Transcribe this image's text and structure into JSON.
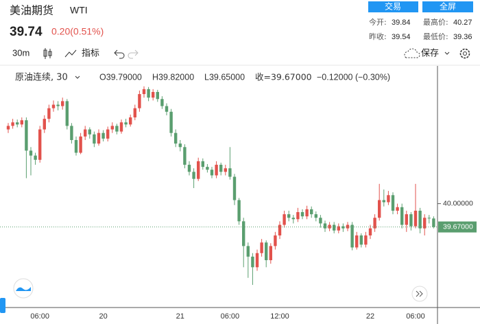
{
  "header": {
    "title": "美油期货",
    "symbol": "WTI",
    "price": "39.74",
    "change": "0.20(0.51%)",
    "buttons": [
      "交易",
      "全屏"
    ],
    "stats": [
      {
        "label": "今开:",
        "value": "39.84"
      },
      {
        "label": "最高价:",
        "value": "40.27"
      },
      {
        "label": "昨收:",
        "value": "39.54"
      },
      {
        "label": "最低价:",
        "value": "39.36"
      }
    ]
  },
  "toolbar": {
    "interval": "30m",
    "indicators": "指标",
    "save": "保存"
  },
  "legend": {
    "name": "原油连续, 30",
    "open": "O39.79000",
    "high": "H39.82000",
    "low": "L39.65000",
    "close": "收=39.67000",
    "change": "−0.12000 (−0.30%)"
  },
  "chart_data": {
    "type": "candlestick",
    "up_color": "#e2524c",
    "down_color": "#5a9e6f",
    "grid": false,
    "ylim": [
      38.53,
      41.91
    ],
    "yticks": [
      {
        "value": 40,
        "label": "40.00000"
      }
    ],
    "price_line": {
      "value": 39.67,
      "label": "39.67000"
    },
    "categories": [
      null,
      null,
      null,
      null,
      null,
      null,
      null,
      "06:00",
      null,
      null,
      null,
      null,
      null,
      null,
      null,
      null,
      null,
      null,
      null,
      null,
      null,
      "20",
      null,
      null,
      null,
      null,
      null,
      null,
      null,
      null,
      null,
      null,
      null,
      null,
      null,
      null,
      null,
      null,
      "21",
      null,
      null,
      null,
      null,
      null,
      null,
      null,
      null,
      null,
      null,
      "06:00",
      null,
      null,
      null,
      null,
      null,
      null,
      null,
      null,
      null,
      null,
      "12:00",
      null,
      null,
      null,
      null,
      null,
      null,
      null,
      null,
      null,
      null,
      null,
      null,
      null,
      null,
      null,
      null,
      null,
      null,
      null,
      "22",
      null,
      null,
      null,
      null,
      null,
      null,
      null,
      null,
      null,
      "06:00",
      null,
      null,
      null,
      null
    ],
    "open": [
      41.05,
      41.1,
      41.15,
      41.12,
      41.18,
      40.75,
      40.68,
      40.62,
      41.05,
      41.2,
      41.35,
      41.4,
      41.38,
      41.45,
      41.1,
      40.9,
      40.72,
      40.95,
      41.05,
      40.98,
      40.85,
      41.0,
      40.92,
      41.05,
      41.1,
      41.02,
      41.15,
      41.12,
      41.22,
      41.35,
      41.55,
      41.62,
      41.5,
      41.58,
      41.48,
      41.38,
      41.3,
      41.0,
      40.85,
      40.8,
      40.55,
      40.45,
      40.35,
      40.6,
      40.52,
      40.48,
      40.4,
      40.55,
      40.45,
      40.5,
      40.38,
      40.05,
      39.75,
      39.4,
      39.25,
      39.1,
      39.3,
      39.45,
      39.2,
      39.4,
      39.55,
      39.7,
      39.85,
      39.8,
      39.78,
      39.88,
      39.82,
      39.92,
      39.85,
      39.8,
      39.72,
      39.65,
      39.7,
      39.62,
      39.68,
      39.65,
      39.7,
      39.38,
      39.55,
      39.42,
      39.55,
      39.65,
      39.8,
      40.05,
      40.02,
      40.12,
      39.9,
      39.95,
      39.7,
      39.85,
      39.68,
      39.9,
      39.65,
      39.8,
      39.79
    ],
    "high": [
      41.14,
      41.2,
      41.19,
      41.22,
      41.22,
      40.8,
      40.72,
      41.1,
      41.25,
      41.4,
      41.46,
      41.45,
      41.5,
      41.48,
      41.14,
      40.95,
      41.0,
      41.1,
      41.08,
      41.02,
      41.05,
      41.04,
      41.09,
      41.15,
      41.13,
      41.19,
      41.2,
      41.26,
      41.4,
      41.6,
      41.66,
      41.65,
      41.62,
      41.61,
      41.52,
      41.42,
      41.34,
      41.05,
      40.9,
      40.84,
      40.6,
      40.5,
      40.65,
      40.64,
      40.56,
      40.52,
      40.6,
      40.58,
      40.55,
      40.8,
      40.42,
      40.08,
      39.8,
      39.45,
      39.3,
      39.35,
      39.5,
      39.48,
      39.44,
      39.6,
      39.75,
      39.9,
      39.9,
      39.84,
      39.94,
      39.92,
      39.97,
      39.96,
      39.89,
      39.84,
      39.76,
      39.74,
      39.74,
      39.72,
      39.72,
      39.74,
      39.74,
      39.6,
      39.58,
      39.6,
      39.7,
      39.85,
      40.28,
      40.2,
      40.18,
      40.16,
      40.0,
      40.0,
      39.9,
      39.88,
      40.28,
      39.94,
      39.85,
      39.84,
      39.82
    ],
    "low": [
      41.0,
      41.06,
      41.08,
      41.08,
      40.36,
      40.4,
      40.55,
      40.58,
      41.0,
      41.15,
      41.3,
      41.32,
      41.33,
      41.05,
      40.85,
      40.68,
      40.7,
      40.9,
      40.92,
      40.8,
      40.82,
      40.88,
      40.88,
      41.0,
      40.98,
      40.99,
      41.08,
      41.09,
      41.18,
      41.3,
      41.5,
      41.45,
      41.46,
      41.44,
      41.34,
      41.25,
      40.95,
      40.8,
      40.74,
      40.5,
      40.4,
      40.22,
      40.32,
      40.48,
      40.44,
      40.36,
      40.36,
      40.4,
      40.4,
      40.34,
      39.98,
      39.7,
      39.1,
      38.95,
      38.85,
      39.05,
      39.25,
      39.1,
      39.15,
      39.35,
      39.5,
      39.66,
      39.75,
      39.72,
      39.74,
      39.78,
      39.78,
      39.8,
      39.75,
      39.66,
      39.6,
      39.61,
      39.58,
      39.58,
      39.6,
      39.61,
      39.34,
      39.35,
      39.38,
      39.38,
      39.5,
      39.6,
      39.76,
      39.96,
      39.98,
      39.85,
      39.85,
      39.65,
      39.6,
      39.62,
      39.65,
      39.58,
      39.55,
      39.72,
      39.65
    ],
    "close": [
      41.1,
      41.15,
      41.12,
      41.18,
      40.75,
      40.68,
      40.62,
      41.05,
      41.2,
      41.35,
      41.4,
      41.38,
      41.45,
      41.1,
      40.9,
      40.72,
      40.95,
      41.05,
      40.98,
      40.85,
      41.0,
      40.92,
      41.05,
      41.1,
      41.02,
      41.15,
      41.12,
      41.22,
      41.35,
      41.55,
      41.62,
      41.5,
      41.58,
      41.48,
      41.38,
      41.3,
      41.0,
      40.85,
      40.8,
      40.55,
      40.45,
      40.35,
      40.6,
      40.52,
      40.48,
      40.4,
      40.55,
      40.45,
      40.5,
      40.38,
      40.05,
      39.75,
      39.4,
      39.25,
      39.1,
      39.3,
      39.45,
      39.2,
      39.4,
      39.55,
      39.7,
      39.85,
      39.8,
      39.78,
      39.88,
      39.82,
      39.92,
      39.85,
      39.8,
      39.72,
      39.65,
      39.7,
      39.62,
      39.68,
      39.65,
      39.7,
      39.38,
      39.55,
      39.42,
      39.55,
      39.65,
      39.8,
      40.05,
      40.02,
      40.12,
      39.9,
      39.95,
      39.7,
      39.85,
      39.68,
      39.9,
      39.65,
      39.8,
      39.79,
      39.67
    ]
  }
}
